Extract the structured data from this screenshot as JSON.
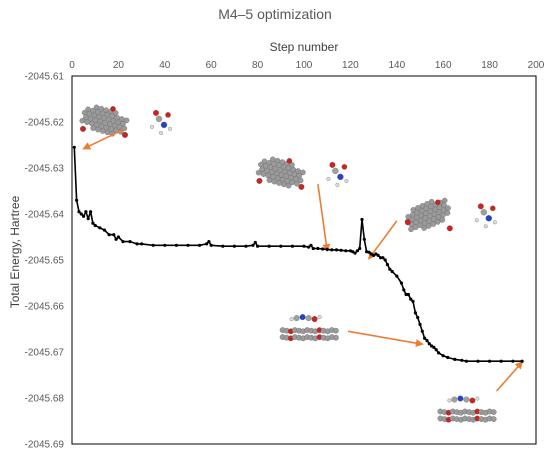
{
  "chart_data": {
    "type": "line",
    "title": "M4–5 optimization",
    "xlabel": "Step number",
    "ylabel": "Total Energy, Hartree",
    "x_axis_position": "top",
    "xlim": [
      0,
      200
    ],
    "ylim": [
      -2045.69,
      -2045.61
    ],
    "y_reversed": true,
    "xticks": [
      "0",
      "20",
      "40",
      "60",
      "80",
      "100",
      "120",
      "140",
      "160",
      "180",
      "200"
    ],
    "yticks": [
      "-2045.61",
      "-2045.62",
      "-2045.63",
      "-2045.64",
      "-2045.65",
      "-2045.66",
      "-2045.67",
      "-2045.68",
      "-2045.69"
    ],
    "grid": false,
    "legend": "none",
    "series_color": "#000000",
    "annotation_color": "#ed7d31",
    "series": [
      {
        "x": [
          1,
          2,
          3,
          4,
          5,
          6,
          7,
          8,
          9,
          10,
          12,
          14,
          16,
          18,
          19,
          20,
          22,
          25,
          28,
          30,
          35,
          40,
          45,
          50,
          55,
          58,
          59,
          60,
          65,
          70,
          75,
          78,
          79,
          80,
          85,
          90,
          95,
          100,
          102,
          103,
          104,
          106,
          108,
          110,
          112,
          114,
          116,
          118,
          120,
          121,
          122,
          123,
          124,
          125,
          126,
          127,
          128,
          129,
          130,
          131,
          132,
          133,
          134,
          135,
          136,
          137,
          138,
          140,
          142,
          143,
          144,
          145,
          146,
          147,
          148,
          149,
          150,
          151,
          152,
          153,
          154,
          155,
          156,
          157,
          158,
          160,
          162,
          165,
          168,
          170,
          175,
          180,
          185,
          190,
          194
        ],
        "y": [
          -2045.6255,
          -2045.637,
          -2045.6395,
          -2045.64,
          -2045.6405,
          -2045.6395,
          -2045.641,
          -2045.6395,
          -2045.642,
          -2045.6425,
          -2045.643,
          -2045.6435,
          -2045.6445,
          -2045.6445,
          -2045.6455,
          -2045.645,
          -2045.646,
          -2045.646,
          -2045.6465,
          -2045.6465,
          -2045.6468,
          -2045.6468,
          -2045.6468,
          -2045.6468,
          -2045.6468,
          -2045.6465,
          -2045.646,
          -2045.6468,
          -2045.647,
          -2045.647,
          -2045.647,
          -2045.6468,
          -2045.6462,
          -2045.647,
          -2045.647,
          -2045.647,
          -2045.647,
          -2045.647,
          -2045.6472,
          -2045.6468,
          -2045.6475,
          -2045.6475,
          -2045.6476,
          -2045.6477,
          -2045.6478,
          -2045.6478,
          -2045.6479,
          -2045.648,
          -2045.648,
          -2045.6482,
          -2045.6485,
          -2045.648,
          -2045.6475,
          -2045.6412,
          -2045.6455,
          -2045.6482,
          -2045.6483,
          -2045.6487,
          -2045.649,
          -2045.6487,
          -2045.649,
          -2045.6495,
          -2045.6495,
          -2045.65,
          -2045.651,
          -2045.652,
          -2045.6525,
          -2045.6535,
          -2045.655,
          -2045.6565,
          -2045.6575,
          -2045.6575,
          -2045.6585,
          -2045.659,
          -2045.6615,
          -2045.6625,
          -2045.664,
          -2045.6655,
          -2045.667,
          -2045.6675,
          -2045.6682,
          -2045.6687,
          -2045.669,
          -2045.6695,
          -2045.6702,
          -2045.6708,
          -2045.6712,
          -2045.6716,
          -2045.6718,
          -2045.672,
          -2045.672,
          -2045.672,
          -2045.672,
          -2045.672,
          -2045.672
        ]
      }
    ],
    "annotations": [
      {
        "from": [
          22,
          -2045.6217
        ],
        "to": [
          5,
          -2045.6258
        ]
      },
      {
        "from": [
          106,
          -2045.6335
        ],
        "to": [
          110,
          -2045.648
        ]
      },
      {
        "from": [
          140,
          -2045.6415
        ],
        "to": [
          128,
          -2045.6497
        ]
      },
      {
        "from": [
          119,
          -2045.6655
        ],
        "to": [
          151,
          -2045.6683
        ]
      },
      {
        "from": [
          183,
          -2045.6785
        ],
        "to": [
          194,
          -2045.6722
        ]
      }
    ],
    "molecule_insets": [
      {
        "x": 22,
        "y": -2045.6202,
        "kind": "sheet-flat",
        "partner": "right"
      },
      {
        "x": 98,
        "y": -2045.6315,
        "kind": "sheet-flat",
        "partner": "right"
      },
      {
        "x": 162,
        "y": -2045.6405,
        "kind": "sheet-tilted",
        "partner": "right"
      },
      {
        "x": 102,
        "y": -2045.6648,
        "kind": "stacked",
        "partner": "top"
      },
      {
        "x": 170,
        "y": -2045.6825,
        "kind": "stacked",
        "partner": "top"
      }
    ]
  }
}
